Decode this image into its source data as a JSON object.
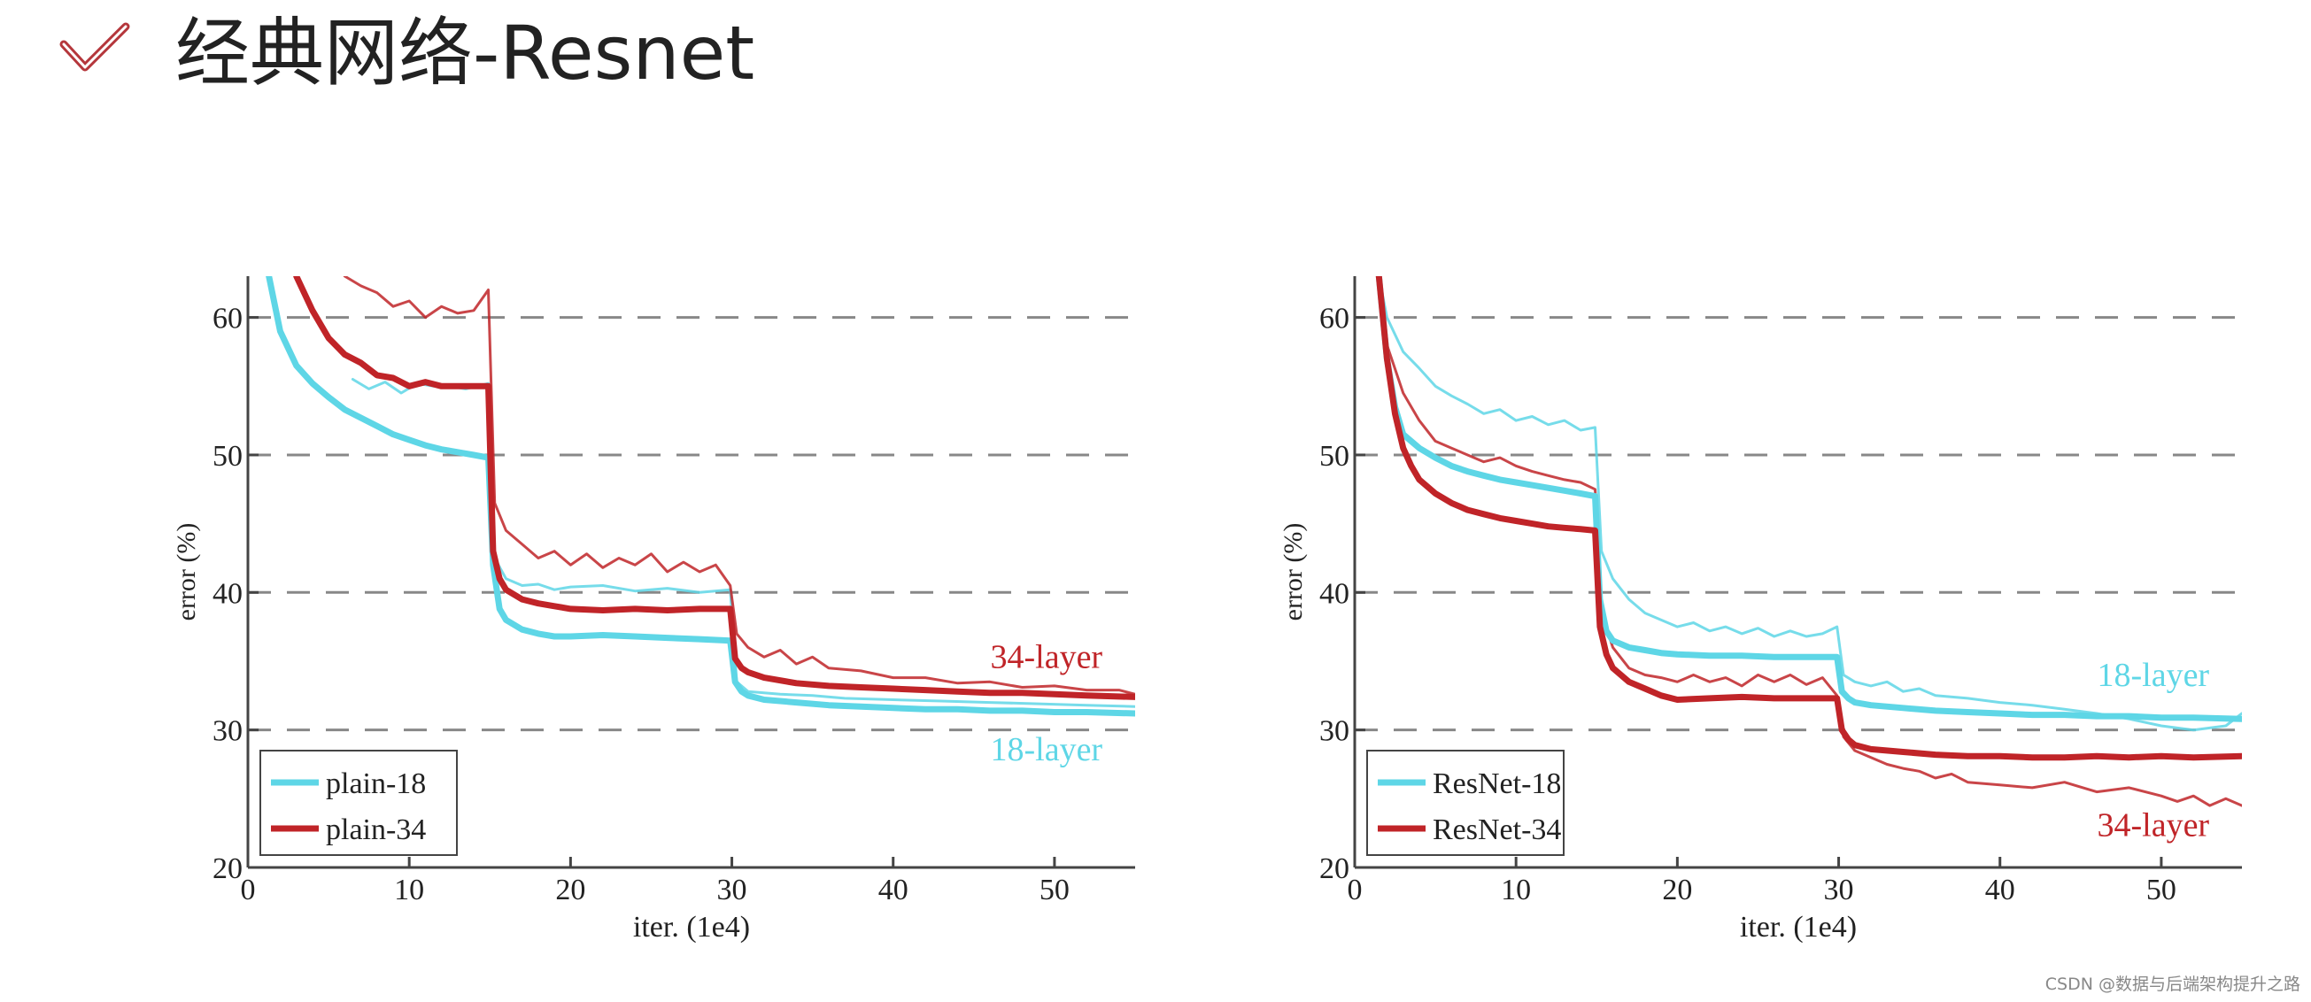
{
  "title": "经典网络-Resnet",
  "icons": {
    "title_mark": "check-icon",
    "title_mark_color": "#b5373c"
  },
  "watermark": "CSDN @数据与后端架构提升之路",
  "colors": {
    "cyan": "#5ed6e6",
    "red": "#c02428",
    "gridline": "#888888"
  },
  "chart_data": [
    {
      "type": "line",
      "title": "",
      "xlabel": "iter. (1e4)",
      "ylabel": "error (%)",
      "xlim": [
        0,
        55
      ],
      "ylim": [
        20,
        63
      ],
      "x_ticks": [
        0,
        10,
        20,
        30,
        40,
        50
      ],
      "y_ticks": [
        20,
        30,
        40,
        50,
        60
      ],
      "grid": "horizontal-dashed",
      "legend": {
        "placement": "bottom-left",
        "entries": [
          "plain-18",
          "plain-34"
        ]
      },
      "annotations": [
        {
          "text": "34-layer",
          "x": 49.5,
          "y": 34.5,
          "color": "red"
        },
        {
          "text": "18-layer",
          "x": 49.5,
          "y": 27.8,
          "color": "cyan"
        }
      ],
      "series": [
        {
          "name": "plain-18",
          "color": "cyan",
          "width": "thick",
          "role": "val",
          "x": [
            1.3,
            2,
            3,
            4,
            5,
            6,
            7,
            8,
            9,
            10,
            11,
            12,
            13,
            14,
            14.9,
            15.2,
            15.6,
            16,
            17,
            18,
            19,
            20,
            22,
            24,
            26,
            28,
            29.9,
            30.2,
            30.6,
            31,
            32,
            34,
            36,
            38,
            40,
            42,
            44,
            46,
            48,
            50,
            52,
            55
          ],
          "y": [
            63,
            59,
            56.5,
            55.2,
            54.2,
            53.3,
            52.7,
            52.1,
            51.5,
            51.1,
            50.7,
            50.4,
            50.2,
            50.0,
            49.8,
            42,
            38.8,
            38.0,
            37.3,
            37.0,
            36.8,
            36.8,
            36.9,
            36.8,
            36.7,
            36.6,
            36.5,
            33.5,
            32.8,
            32.5,
            32.2,
            32.0,
            31.8,
            31.7,
            31.6,
            31.5,
            31.5,
            31.4,
            31.4,
            31.3,
            31.3,
            31.2
          ]
        },
        {
          "name": "plain-34",
          "color": "red",
          "width": "thick",
          "role": "val",
          "x": [
            3,
            4,
            5,
            6,
            7,
            8,
            9,
            10,
            11,
            12,
            13,
            14,
            14.9,
            15.2,
            15.6,
            16,
            17,
            18,
            19,
            20,
            22,
            24,
            26,
            28,
            29.9,
            30.2,
            30.6,
            31,
            32,
            34,
            36,
            38,
            40,
            42,
            44,
            46,
            48,
            50,
            52,
            55
          ],
          "y": [
            63,
            60.5,
            58.5,
            57.3,
            56.7,
            55.8,
            55.6,
            55.0,
            55.3,
            55.0,
            55.0,
            55.0,
            55.0,
            43,
            41.0,
            40.2,
            39.5,
            39.2,
            39.0,
            38.8,
            38.7,
            38.8,
            38.7,
            38.8,
            38.8,
            35.2,
            34.5,
            34.2,
            33.8,
            33.4,
            33.2,
            33.1,
            33.0,
            32.9,
            32.8,
            32.7,
            32.7,
            32.6,
            32.5,
            32.4
          ]
        },
        {
          "name": "plain-18 train",
          "color": "cyan",
          "width": "thin",
          "role": "train",
          "x": [
            6.5,
            7.5,
            8.5,
            9.5,
            10.5,
            11.5,
            12.5,
            13.5,
            14.9,
            15.3,
            16,
            17,
            18,
            19,
            20,
            22,
            24,
            26,
            28,
            29.9,
            30.3,
            31,
            33,
            35,
            37,
            40,
            43,
            46,
            49,
            52,
            55
          ],
          "y": [
            55.5,
            54.8,
            55.3,
            54.5,
            55.2,
            55.0,
            55.0,
            54.8,
            55.2,
            42.5,
            41.0,
            40.5,
            40.6,
            40.2,
            40.4,
            40.5,
            40.1,
            40.3,
            40.0,
            40.2,
            33.5,
            32.8,
            32.6,
            32.5,
            32.3,
            32.2,
            32.1,
            32.0,
            31.9,
            31.8,
            31.7
          ]
        },
        {
          "name": "plain-34 train",
          "color": "red",
          "width": "thin",
          "role": "train",
          "x": [
            6,
            7,
            8,
            9,
            10,
            11,
            12,
            13,
            14,
            14.9,
            15.3,
            16,
            17,
            18,
            19,
            20,
            21,
            22,
            23,
            24,
            25,
            26,
            27,
            28,
            29,
            29.9,
            30.3,
            31,
            32,
            33,
            34,
            35,
            36,
            38,
            40,
            42,
            44,
            46,
            48,
            50,
            52,
            54,
            55
          ],
          "y": [
            63,
            62.3,
            61.8,
            60.8,
            61.2,
            60.0,
            60.8,
            60.3,
            60.5,
            62,
            46.5,
            44.5,
            43.5,
            42.5,
            43.0,
            42.0,
            42.8,
            41.8,
            42.5,
            42.0,
            42.8,
            41.5,
            42.2,
            41.5,
            42.0,
            40.5,
            37.0,
            36.0,
            35.3,
            35.8,
            34.8,
            35.3,
            34.5,
            34.3,
            33.8,
            33.8,
            33.4,
            33.5,
            33.1,
            33.2,
            32.9,
            32.9,
            32.6
          ]
        }
      ]
    },
    {
      "type": "line",
      "title": "",
      "xlabel": "iter. (1e4)",
      "ylabel": "error (%)",
      "xlim": [
        0,
        55
      ],
      "ylim": [
        20,
        63
      ],
      "x_ticks": [
        0,
        10,
        20,
        30,
        40,
        50
      ],
      "y_ticks": [
        20,
        30,
        40,
        50,
        60
      ],
      "grid": "horizontal-dashed",
      "legend": {
        "placement": "bottom-left",
        "entries": [
          "ResNet-18",
          "ResNet-34"
        ]
      },
      "annotations": [
        {
          "text": "18-layer",
          "x": 49.5,
          "y": 33.2,
          "color": "cyan"
        },
        {
          "text": "34-layer",
          "x": 49.5,
          "y": 22.3,
          "color": "red"
        }
      ],
      "series": [
        {
          "name": "ResNet-18",
          "color": "cyan",
          "width": "thick",
          "role": "val",
          "x": [
            1.5,
            2,
            2.5,
            3,
            4,
            5,
            6,
            7,
            8,
            9,
            10,
            11,
            12,
            13,
            14,
            14.9,
            15.2,
            15.6,
            16,
            17,
            18,
            19,
            20,
            22,
            24,
            26,
            28,
            29.9,
            30.2,
            30.6,
            31,
            32,
            34,
            36,
            38,
            40,
            42,
            44,
            46,
            48,
            50,
            52,
            55
          ],
          "y": [
            63,
            57,
            53.5,
            51.5,
            50.5,
            49.8,
            49.2,
            48.8,
            48.5,
            48.2,
            48.0,
            47.8,
            47.6,
            47.4,
            47.2,
            47.0,
            39.5,
            37.2,
            36.5,
            36.0,
            35.8,
            35.6,
            35.5,
            35.4,
            35.4,
            35.3,
            35.3,
            35.3,
            32.8,
            32.3,
            32.0,
            31.8,
            31.6,
            31.4,
            31.3,
            31.2,
            31.1,
            31.1,
            31.0,
            31.0,
            30.9,
            30.9,
            30.8
          ]
        },
        {
          "name": "ResNet-34",
          "color": "red",
          "width": "thick",
          "role": "val",
          "x": [
            1.5,
            2,
            2.5,
            3,
            3.5,
            4,
            5,
            6,
            7,
            8,
            9,
            10,
            11,
            12,
            13,
            14,
            14.9,
            15.2,
            15.6,
            16,
            17,
            18,
            19,
            20,
            22,
            24,
            26,
            28,
            29.9,
            30.2,
            30.6,
            31,
            32,
            34,
            36,
            38,
            40,
            42,
            44,
            46,
            48,
            50,
            52,
            55
          ],
          "y": [
            63,
            57,
            53,
            50.5,
            49.2,
            48.2,
            47.2,
            46.5,
            46.0,
            45.7,
            45.4,
            45.2,
            45.0,
            44.8,
            44.7,
            44.6,
            44.5,
            37.5,
            35.5,
            34.5,
            33.5,
            33.0,
            32.5,
            32.2,
            32.3,
            32.4,
            32.3,
            32.3,
            32.3,
            30.0,
            29.3,
            28.9,
            28.6,
            28.4,
            28.2,
            28.1,
            28.1,
            28.0,
            28.0,
            28.1,
            28.0,
            28.1,
            28.0,
            28.1
          ]
        },
        {
          "name": "ResNet-18 train",
          "color": "cyan",
          "width": "thin",
          "role": "train",
          "x": [
            1.5,
            2,
            3,
            4,
            5,
            6,
            7,
            8,
            9,
            10,
            11,
            12,
            13,
            14,
            14.9,
            15.3,
            16,
            17,
            18,
            19,
            20,
            21,
            22,
            23,
            24,
            25,
            26,
            27,
            28,
            29,
            29.9,
            30.3,
            31,
            32,
            33,
            34,
            35,
            36,
            38,
            40,
            42,
            44,
            46,
            48,
            50,
            52,
            54,
            55
          ],
          "y": [
            63,
            60,
            57.5,
            56.3,
            55.0,
            54.3,
            53.7,
            53.0,
            53.3,
            52.5,
            52.8,
            52.2,
            52.5,
            51.8,
            52.0,
            43,
            41.0,
            39.5,
            38.5,
            38.0,
            37.5,
            37.8,
            37.2,
            37.5,
            37.0,
            37.4,
            36.8,
            37.2,
            36.8,
            37.0,
            37.5,
            34.0,
            33.5,
            33.2,
            33.5,
            32.8,
            33.0,
            32.5,
            32.3,
            32.0,
            31.8,
            31.5,
            31.2,
            30.8,
            30.3,
            30.0,
            30.3,
            31.2
          ]
        },
        {
          "name": "ResNet-34 train",
          "color": "red",
          "width": "thin",
          "role": "train",
          "x": [
            1.5,
            2,
            3,
            4,
            5,
            6,
            7,
            8,
            9,
            10,
            11,
            12,
            13,
            14,
            14.9,
            15.3,
            16,
            17,
            18,
            19,
            20,
            21,
            22,
            23,
            24,
            25,
            26,
            27,
            28,
            29,
            29.9,
            30.3,
            31,
            32,
            33,
            34,
            35,
            36,
            37,
            38,
            40,
            42,
            44,
            46,
            48,
            50,
            51,
            52,
            53,
            54,
            55
          ],
          "y": [
            63,
            58,
            54.5,
            52.5,
            51.0,
            50.5,
            50.0,
            49.5,
            49.8,
            49.2,
            48.8,
            48.5,
            48.2,
            48.0,
            47.5,
            38.5,
            36.0,
            34.5,
            34.0,
            33.8,
            33.5,
            34.0,
            33.5,
            33.8,
            33.2,
            34.0,
            33.5,
            34.0,
            33.3,
            33.8,
            32.5,
            29.5,
            28.5,
            28.0,
            27.5,
            27.2,
            27.0,
            26.5,
            26.8,
            26.2,
            26.0,
            25.8,
            26.2,
            25.5,
            25.8,
            25.2,
            24.8,
            25.2,
            24.5,
            25.0,
            24.5
          ]
        }
      ]
    }
  ]
}
